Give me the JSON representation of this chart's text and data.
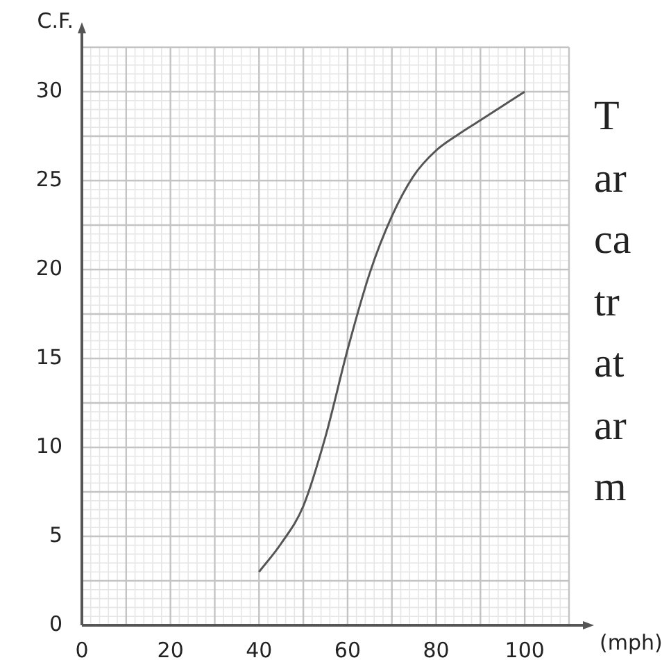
{
  "chart_data": {
    "type": "line",
    "xlabel": "(mph)",
    "ylabel": "C.F.",
    "x": [
      40,
      45,
      50,
      55,
      60,
      65,
      70,
      75,
      80,
      85,
      90,
      95,
      100
    ],
    "series": [
      {
        "color": "#555555",
        "values": [
          3,
          4.6,
          6.7,
          10.6,
          15.5,
          19.8,
          23,
          25.3,
          26.7,
          27.6,
          28.4,
          29.2,
          30
        ]
      }
    ],
    "xlim": [
      0,
      110
    ],
    "ylim": [
      0,
      32.5
    ],
    "xticks": [
      0,
      20,
      40,
      60,
      80,
      100
    ],
    "yticks": [
      0,
      5,
      10,
      15,
      20,
      25,
      30
    ],
    "grid": true,
    "marker": "none",
    "line_style": "solid",
    "annotations": [
      "T",
      "ar",
      "ca",
      "tr",
      "at",
      "ar",
      "m"
    ]
  }
}
